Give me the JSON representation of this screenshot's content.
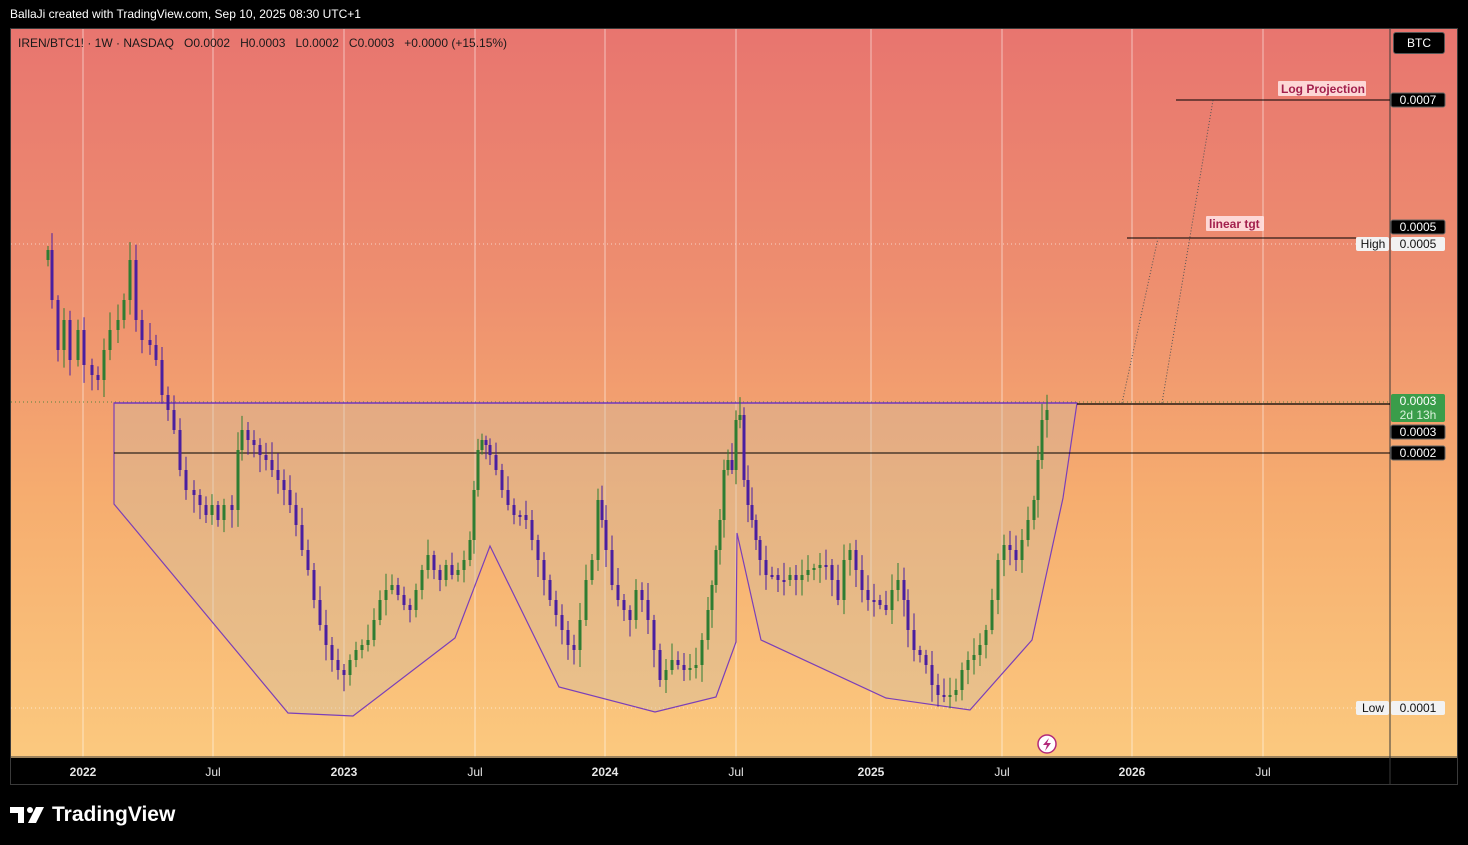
{
  "header": {
    "credit": "BallaJi created with TradingView.com, Sep 10, 2025 08:30 UTC+1"
  },
  "legend": {
    "symbol": "IREN/BTC1! · 1W · NASDAQ",
    "open": "O0.0002",
    "high": "H0.0003",
    "low": "L0.0002",
    "close": "C0.0003",
    "change": "+0.0000 (+15.15%)"
  },
  "symbol_button": {
    "label": "BTC"
  },
  "footer": {
    "brand": "TradingView"
  },
  "colors": {
    "up": "#2e7d32",
    "down": "#4a1fa0",
    "pattern": "#7b3fb8",
    "label_bg": "#000000",
    "green_label": "#3a9d4a"
  },
  "chart_data": {
    "type": "candlestick",
    "x_ticks": [
      {
        "label": "2022",
        "bold": true
      },
      {
        "label": "Jul",
        "bold": false
      },
      {
        "label": "2023",
        "bold": true
      },
      {
        "label": "Jul",
        "bold": false
      },
      {
        "label": "2024",
        "bold": true
      },
      {
        "label": "Jul",
        "bold": false
      },
      {
        "label": "2025",
        "bold": true
      },
      {
        "label": "Jul",
        "bold": false
      },
      {
        "label": "2026",
        "bold": true
      },
      {
        "label": "Jul",
        "bold": false
      }
    ],
    "price_labels": [
      {
        "text": "0.0007",
        "tag": "",
        "style": "dark"
      },
      {
        "text": "0.0005",
        "tag": "",
        "style": "dark"
      },
      {
        "text": "0.0005",
        "tag": "High",
        "style": "light"
      },
      {
        "text": "0.0003",
        "tag": "2d 13h",
        "style": "green"
      },
      {
        "text": "0.0003",
        "tag": "",
        "style": "dark"
      },
      {
        "text": "0.0002",
        "tag": "",
        "style": "dark"
      },
      {
        "text": "0.0001",
        "tag": "Low",
        "style": "light"
      }
    ],
    "annotations": [
      {
        "text": "Log Projection"
      },
      {
        "text": "linear tgt"
      }
    ],
    "candle_count": 194,
    "timeframe": "1W"
  }
}
